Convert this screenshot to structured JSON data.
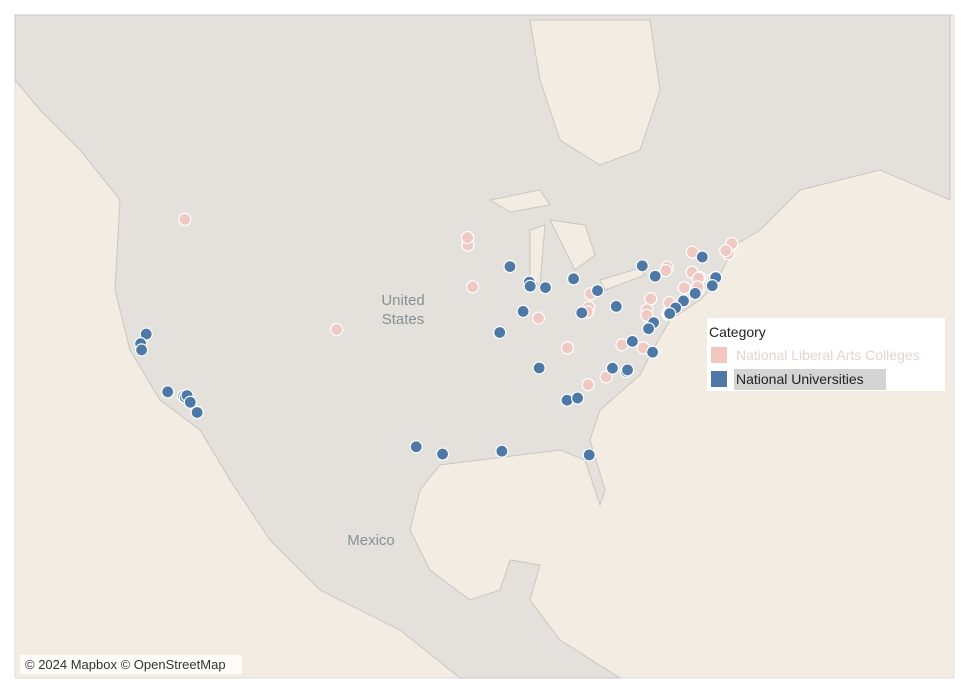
{
  "map": {
    "country_labels": [
      [
        "United",
        "States"
      ],
      [
        "Mexico"
      ]
    ],
    "attribution": "© 2024 Mapbox © OpenStreetMap",
    "legend": {
      "title": "Category"
    },
    "series": [
      {
        "name": "National Liberal Arts Colleges",
        "color": "#f1c6bf",
        "points": [
          [
            -118.33,
            46.07
          ],
          [
            -93.15,
            44.46
          ],
          [
            -93.17,
            44.94
          ],
          [
            -92.72,
            41.75
          ],
          [
            -104.82,
            38.85
          ],
          [
            -82.22,
            41.29
          ],
          [
            -82.4,
            40.38
          ],
          [
            -82.52,
            40.07
          ],
          [
            -86.86,
            39.64
          ],
          [
            -84.29,
            37.57
          ],
          [
            -80.84,
            35.5
          ],
          [
            -82.44,
            34.93
          ],
          [
            -79.44,
            37.79
          ],
          [
            -77.54,
            37.58
          ],
          [
            -75.35,
            39.91
          ],
          [
            -75.31,
            40.01
          ],
          [
            -76.88,
            40.95
          ],
          [
            -75.21,
            40.7
          ],
          [
            -77.2,
            40.2
          ],
          [
            -77.23,
            39.83
          ],
          [
            -75.41,
            43.05
          ],
          [
            -75.53,
            42.82
          ],
          [
            -73.9,
            41.69
          ],
          [
            -73.2,
            42.71
          ],
          [
            -72.52,
            42.37
          ],
          [
            -72.64,
            42.32
          ],
          [
            -73.17,
            44.01
          ],
          [
            -71.31,
            42.29
          ],
          [
            -72.66,
            41.56
          ],
          [
            -72.69,
            41.75
          ],
          [
            -69.96,
            43.91
          ],
          [
            -69.66,
            44.56
          ],
          [
            -70.2,
            44.11
          ]
        ]
      },
      {
        "name": "National Universities",
        "color": "#4e79a7",
        "points": [
          [
            -121.76,
            38.54
          ],
          [
            -122.26,
            37.87
          ],
          [
            -122.17,
            37.43
          ],
          [
            -119.85,
            34.41
          ],
          [
            -118.44,
            34.07
          ],
          [
            -118.29,
            34.02
          ],
          [
            -118.13,
            34.14
          ],
          [
            -117.84,
            33.64
          ],
          [
            -117.23,
            32.88
          ],
          [
            -97.74,
            30.28
          ],
          [
            -95.4,
            29.72
          ],
          [
            -90.12,
            29.94
          ],
          [
            -82.35,
            29.65
          ],
          [
            -84.32,
            33.79
          ],
          [
            -83.38,
            33.95
          ],
          [
            -86.8,
            36.14
          ],
          [
            -90.31,
            38.65
          ],
          [
            -88.23,
            40.1
          ],
          [
            -89.4,
            43.08
          ],
          [
            -87.68,
            42.06
          ],
          [
            -87.6,
            41.79
          ],
          [
            -86.24,
            41.7
          ],
          [
            -83.74,
            42.28
          ],
          [
            -81.61,
            41.5
          ],
          [
            -83.01,
            40.0
          ],
          [
            -79.94,
            40.44
          ],
          [
            -77.63,
            43.13
          ],
          [
            -76.48,
            42.45
          ],
          [
            -72.29,
            43.7
          ],
          [
            -71.12,
            42.38
          ],
          [
            -71.09,
            42.36
          ],
          [
            -71.4,
            41.83
          ],
          [
            -72.92,
            41.31
          ],
          [
            -73.96,
            40.81
          ],
          [
            -74.66,
            40.34
          ],
          [
            -75.19,
            39.95
          ],
          [
            -76.62,
            39.33
          ],
          [
            -77.07,
            38.91
          ],
          [
            -78.51,
            38.03
          ],
          [
            -76.71,
            37.27
          ],
          [
            -79.05,
            35.9
          ],
          [
            -78.94,
            36.0
          ],
          [
            -80.28,
            36.13
          ]
        ]
      }
    ]
  }
}
